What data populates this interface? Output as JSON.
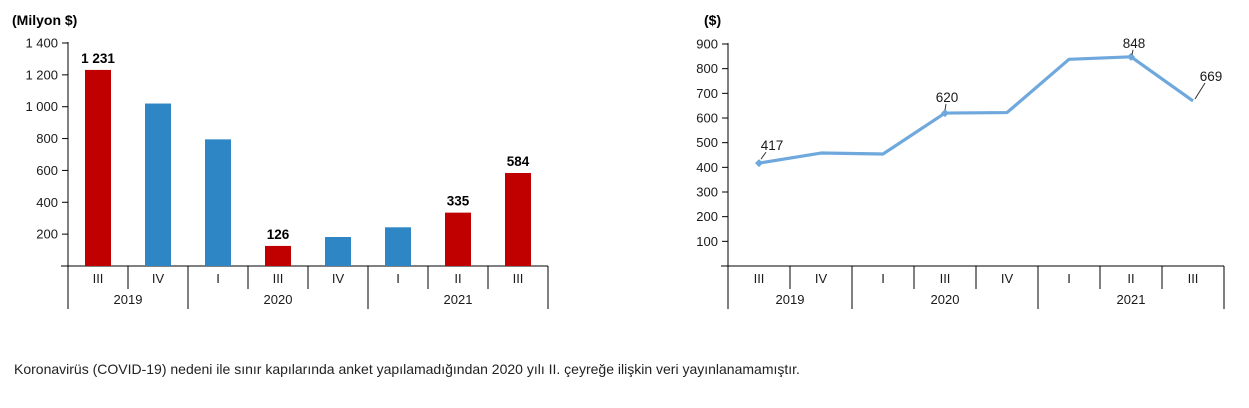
{
  "footnote": "Koronavirüs (COVID-19) nedeni ile sınır kapılarında anket yapılamadığından 2020 yılı II. çeyreğe ilişkin veri yayınlanamamıştır.",
  "chart_data": [
    {
      "type": "bar",
      "title": "(Milyon $)",
      "unit": "Milyon $",
      "ylim": [
        0,
        1400
      ],
      "ytick_step": 200,
      "ytick_labels": [
        "1 400",
        "1 200",
        "1 000",
        "800",
        "600",
        "400",
        "200"
      ],
      "grid": false,
      "legend": "none",
      "groups": [
        {
          "year": "2019",
          "quarters": [
            "III",
            "IV"
          ]
        },
        {
          "year": "2020",
          "quarters": [
            "I",
            "III",
            "IV"
          ]
        },
        {
          "year": "2021",
          "quarters": [
            "I",
            "II",
            "III"
          ]
        }
      ],
      "categories": [
        "2019 III",
        "2019 IV",
        "2020 I",
        "2020 III",
        "2020 IV",
        "2021 I",
        "2021 II",
        "2021 III"
      ],
      "values": [
        1231,
        1020,
        795,
        126,
        182,
        243,
        335,
        584
      ],
      "value_labels": [
        "1 231",
        null,
        null,
        "126",
        null,
        null,
        "335",
        "584"
      ],
      "bar_color_keys": [
        "red",
        "blue",
        "blue",
        "red",
        "blue",
        "blue",
        "red",
        "red"
      ],
      "colors": {
        "red": "#C00000",
        "blue": "#2E86C5"
      }
    },
    {
      "type": "line",
      "title": "($)",
      "unit": "$",
      "ylim": [
        0,
        900
      ],
      "ytick_step": 100,
      "ytick_labels": [
        "900",
        "800",
        "700",
        "600",
        "500",
        "400",
        "300",
        "200",
        "100"
      ],
      "grid": false,
      "legend": "none",
      "groups": [
        {
          "year": "2019",
          "quarters": [
            "III",
            "IV"
          ]
        },
        {
          "year": "2020",
          "quarters": [
            "I",
            "III",
            "IV"
          ]
        },
        {
          "year": "2021",
          "quarters": [
            "I",
            "II",
            "III"
          ]
        }
      ],
      "categories": [
        "2019 III",
        "2019 IV",
        "2020 I",
        "2020 III",
        "2020 IV",
        "2021 I",
        "2021 II",
        "2021 III"
      ],
      "values": [
        417,
        458,
        454,
        620,
        622,
        838,
        848,
        669
      ],
      "value_labels": [
        "417",
        null,
        null,
        "620",
        null,
        null,
        "848",
        "669"
      ],
      "line_color": "#6FA8DC"
    }
  ]
}
